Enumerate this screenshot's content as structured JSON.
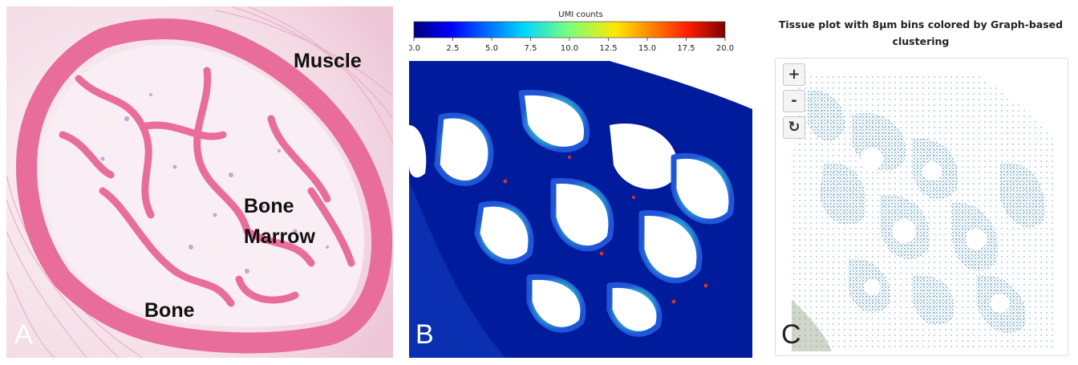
{
  "panel_a": {
    "labels": {
      "muscle": "Muscle",
      "bone_marrow_line1": "Bone",
      "bone_marrow_line2": "Marrow",
      "bone": "Bone"
    },
    "letter": "A"
  },
  "panel_b": {
    "colorbar": {
      "title": "UMI counts",
      "min": 0,
      "max": 20,
      "ticks": [
        "0.0",
        "2.5",
        "5.0",
        "7.5",
        "10.0",
        "12.5",
        "15.0",
        "17.5",
        "20.0"
      ],
      "colormap": "jet"
    },
    "letter": "B"
  },
  "panel_c": {
    "title_line1": "Tissue plot with 8µm bins colored by Graph-based",
    "title_line2": "clustering",
    "controls": {
      "zoom_in": "+",
      "zoom_out": "-",
      "reset": "↻"
    },
    "cluster_color": "#1f6f98",
    "letter": "C"
  },
  "colors": {
    "he_pink": "#e96d9a",
    "he_background": "#f3d9e4",
    "umi_low": "#00008b"
  }
}
